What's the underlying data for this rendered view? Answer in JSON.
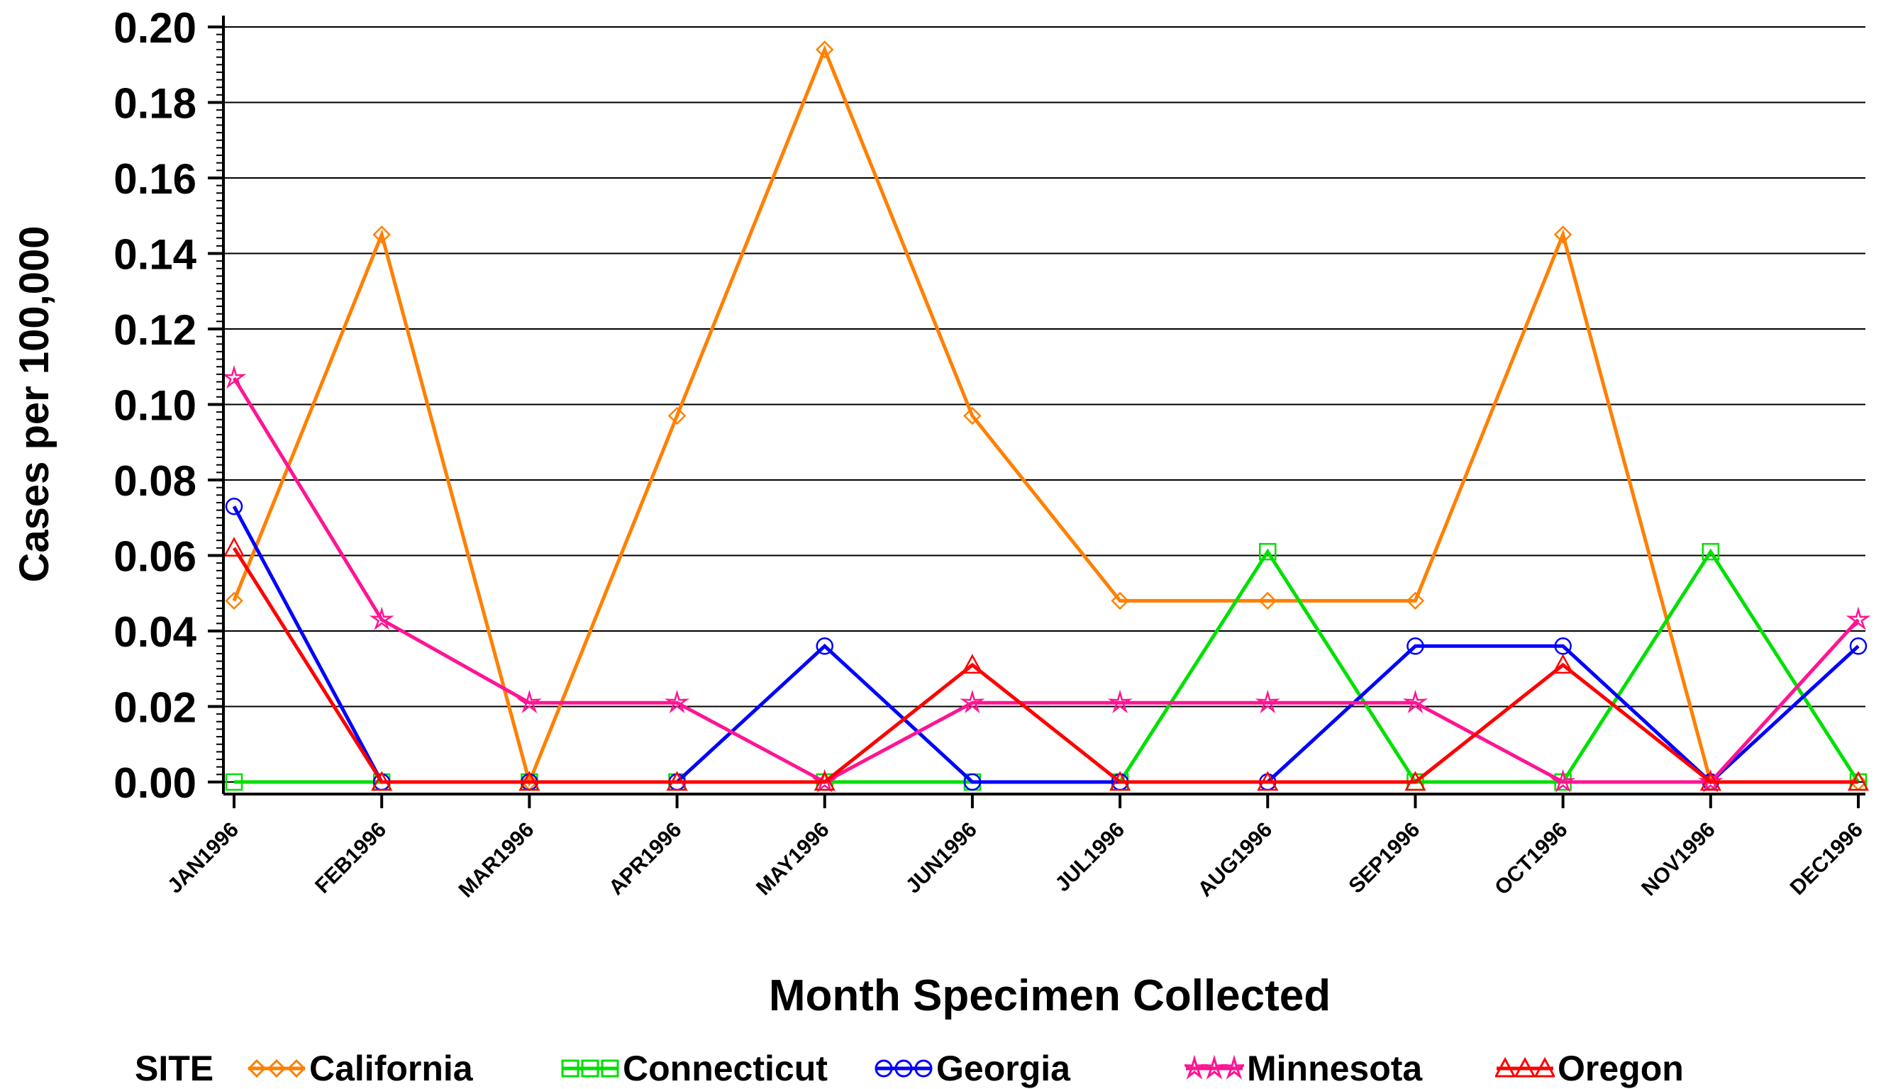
{
  "chart_data": {
    "type": "line",
    "title": "",
    "xlabel": "Month Specimen Collected",
    "ylabel": "Cases per 100,000",
    "ylim": [
      0,
      0.2
    ],
    "yticks": [
      "0.00",
      "0.02",
      "0.04",
      "0.06",
      "0.08",
      "0.10",
      "0.12",
      "0.14",
      "0.16",
      "0.18",
      "0.20"
    ],
    "categories": [
      "JAN1996",
      "FEB1996",
      "MAR1996",
      "APR1996",
      "MAY1996",
      "JUN1996",
      "JUL1996",
      "AUG1996",
      "SEP1996",
      "OCT1996",
      "NOV1996",
      "DEC1996"
    ],
    "grid": true,
    "legend_title": "SITE",
    "legend_position": "bottom",
    "series": [
      {
        "name": "California",
        "color": "#ff8000",
        "marker": "diamond",
        "values": [
          0.048,
          0.145,
          0.0,
          0.097,
          0.194,
          0.097,
          0.048,
          0.048,
          0.048,
          0.145,
          0.0,
          0.0
        ]
      },
      {
        "name": "Connecticut",
        "color": "#00e000",
        "marker": "square",
        "values": [
          0.0,
          0.0,
          0.0,
          0.0,
          0.0,
          0.0,
          0.0,
          0.061,
          0.0,
          0.0,
          0.061,
          0.0
        ]
      },
      {
        "name": "Georgia",
        "color": "#0000ff",
        "marker": "circle",
        "values": [
          0.073,
          0.0,
          0.0,
          0.0,
          0.036,
          0.0,
          0.0,
          0.0,
          0.036,
          0.036,
          0.0,
          0.036
        ]
      },
      {
        "name": "Minnesota",
        "color": "#ff1493",
        "marker": "star",
        "values": [
          0.107,
          0.043,
          0.021,
          0.021,
          0.0,
          0.021,
          0.021,
          0.021,
          0.021,
          0.0,
          0.0,
          0.043
        ]
      },
      {
        "name": "Oregon",
        "color": "#ff0000",
        "marker": "triangle",
        "values": [
          0.062,
          0.0,
          0.0,
          0.0,
          0.0,
          0.031,
          0.0,
          0.0,
          0.0,
          0.031,
          0.0,
          0.0
        ]
      }
    ]
  }
}
